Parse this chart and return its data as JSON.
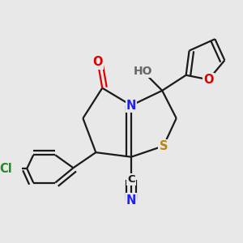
{
  "bg_color": "#e8e8e8",
  "bond_color": "#1a1a1a",
  "bond_lw": 1.6,
  "colors": {
    "C": "#1a1a1a",
    "N": "#2020ff",
    "O": "#dd0000",
    "S": "#b8860b",
    "Cl": "#228b22",
    "H": "#666666"
  },
  "fs": 10.5,
  "xlim": [
    -1.6,
    1.8
  ],
  "ylim": [
    -1.7,
    1.7
  ]
}
